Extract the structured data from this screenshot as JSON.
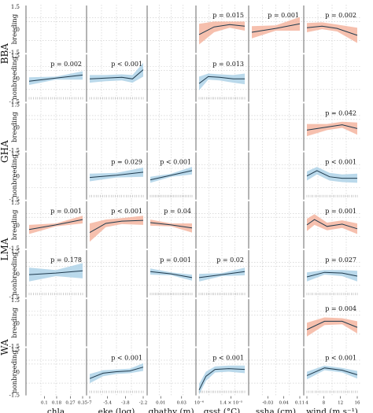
{
  "chart_data": {
    "type": "line",
    "layout_note_free": true,
    "axes": {
      "y_range": [
        -1.5,
        1.5
      ],
      "y_ticks": [
        "1.5",
        "0",
        "-1.5"
      ],
      "grid": "dotted"
    },
    "colors": {
      "breeding": "#f4b09a",
      "nonbreeding": "#a9cfe6",
      "line": "#1f3a4d",
      "grid": "#c8c8c8",
      "rug": "#9a9a9a"
    },
    "columns": [
      {
        "id": "chla",
        "xlabel": "chla",
        "xlim": [
          0,
          0.35
        ],
        "ticks": [
          {
            "v": 0.1,
            "t": "0.1"
          },
          {
            "v": 0.18,
            "t": "0.18"
          },
          {
            "v": 0.27,
            "t": "0.27"
          },
          {
            "v": 0.35,
            "t": "0.35"
          }
        ]
      },
      {
        "id": "eke",
        "xlabel": "eke (log)",
        "xlim": [
          -7,
          -2.2
        ],
        "ticks": [
          {
            "v": -7,
            "t": "-7"
          },
          {
            "v": -5.4,
            "t": "-5.4"
          },
          {
            "v": -3.8,
            "t": "-3.8"
          },
          {
            "v": -2.2,
            "t": "-2.2"
          }
        ]
      },
      {
        "id": "gbathy",
        "xlabel": "gbathy (m)",
        "xlim": [
          0,
          0.04
        ],
        "ticks": [
          {
            "v": 0.01,
            "t": "0.01"
          },
          {
            "v": 0.03,
            "t": "0.03"
          }
        ]
      },
      {
        "id": "gsst",
        "xlabel": "gsst (°C)",
        "xlim": [
          0,
          2
        ],
        "ticks": [
          {
            "v": 0,
            "t": "10⁻⁶"
          },
          {
            "v": 1.4,
            "t": "1.4 × 10⁻⁵"
          }
        ]
      },
      {
        "id": "ssha",
        "xlabel": "ssha (cm)",
        "xlim": [
          -0.1,
          0.11
        ],
        "ticks": [
          {
            "v": -0.03,
            "t": "-0.03"
          },
          {
            "v": 0.04,
            "t": "0.04"
          },
          {
            "v": 0.11,
            "t": "0.11"
          }
        ]
      },
      {
        "id": "wind",
        "xlabel": "wind (m s⁻¹)",
        "xlim": [
          4,
          16
        ],
        "ticks": [
          {
            "v": 4,
            "t": "4"
          },
          {
            "v": 8,
            "t": "8"
          },
          {
            "v": 12,
            "t": "12"
          },
          {
            "v": 16,
            "t": "16"
          }
        ]
      }
    ],
    "groups": [
      "BBA",
      "GHA",
      "LMA",
      "WA"
    ],
    "seasons": [
      "breeding",
      "nonbreeding"
    ],
    "panels": [
      {
        "group": "BBA",
        "season": "breeding",
        "col": 3,
        "p": "p = 0.015",
        "x": [
          0,
          0.33,
          0.67,
          1
        ],
        "y": [
          -0.35,
          0.15,
          0.3,
          0.2
        ],
        "lo": [
          -1.0,
          -0.2,
          0.1,
          -0.1
        ],
        "hi": [
          0.35,
          0.5,
          0.5,
          0.5
        ]
      },
      {
        "group": "BBA",
        "season": "breeding",
        "col": 4,
        "p": "p = 0.001",
        "x": [
          0,
          0.5,
          1
        ],
        "y": [
          -0.2,
          0.05,
          0.35
        ],
        "lo": [
          -0.6,
          -0.1,
          -0.1
        ],
        "hi": [
          0.2,
          0.25,
          0.8
        ]
      },
      {
        "group": "BBA",
        "season": "breeding",
        "col": 5,
        "p": "p = 0.002",
        "x": [
          0,
          0.3,
          0.6,
          1
        ],
        "y": [
          0.1,
          0.2,
          0.05,
          -0.4
        ],
        "lo": [
          -0.2,
          0.0,
          -0.15,
          -0.9
        ],
        "hi": [
          0.4,
          0.45,
          0.3,
          0.1
        ]
      },
      {
        "group": "BBA",
        "season": "nonbreeding",
        "col": 0,
        "p": "p = 0.002",
        "x": [
          0,
          0.5,
          1
        ],
        "y": [
          -0.2,
          0.0,
          0.2
        ],
        "lo": [
          -0.45,
          -0.1,
          -0.1
        ],
        "hi": [
          0.05,
          0.1,
          0.45
        ]
      },
      {
        "group": "BBA",
        "season": "nonbreeding",
        "col": 1,
        "p": "p < 0.001",
        "x": [
          0,
          0.3,
          0.6,
          0.8,
          1
        ],
        "y": [
          -0.05,
          0.0,
          0.05,
          -0.05,
          0.55
        ],
        "lo": [
          -0.3,
          -0.2,
          -0.15,
          -0.3,
          0.1
        ],
        "hi": [
          0.2,
          0.2,
          0.25,
          0.2,
          1.0
        ]
      },
      {
        "group": "BBA",
        "season": "nonbreeding",
        "col": 3,
        "p": "p = 0.013",
        "x": [
          0,
          0.2,
          0.45,
          0.75,
          1
        ],
        "y": [
          -0.35,
          0.1,
          0.05,
          -0.05,
          -0.05
        ],
        "lo": [
          -0.8,
          -0.1,
          -0.15,
          -0.3,
          -0.4
        ],
        "hi": [
          0.1,
          0.3,
          0.25,
          0.2,
          0.3
        ]
      },
      {
        "group": "GHA",
        "season": "breeding",
        "col": 5,
        "p": "p = 0.042",
        "x": [
          0,
          0.4,
          0.7,
          1
        ],
        "y": [
          -0.2,
          0.0,
          0.15,
          -0.1
        ],
        "lo": [
          -0.6,
          -0.2,
          -0.05,
          -0.5
        ],
        "hi": [
          0.2,
          0.2,
          0.35,
          0.3
        ]
      },
      {
        "group": "GHA",
        "season": "nonbreeding",
        "col": 1,
        "p": "p = 0.029",
        "x": [
          0,
          0.5,
          1
        ],
        "y": [
          -0.1,
          0.05,
          0.25
        ],
        "lo": [
          -0.35,
          -0.1,
          -0.05
        ],
        "hi": [
          0.15,
          0.2,
          0.55
        ]
      },
      {
        "group": "GHA",
        "season": "nonbreeding",
        "col": 2,
        "p": "p < 0.001",
        "x": [
          0,
          0.5,
          1
        ],
        "y": [
          -0.25,
          0.05,
          0.35
        ],
        "lo": [
          -0.45,
          -0.05,
          0.1
        ],
        "hi": [
          -0.05,
          0.15,
          0.6
        ]
      },
      {
        "group": "GHA",
        "season": "nonbreeding",
        "col": 5,
        "p": "p < 0.001",
        "x": [
          0,
          0.2,
          0.45,
          0.7,
          1
        ],
        "y": [
          0.0,
          0.35,
          -0.05,
          -0.15,
          -0.15
        ],
        "lo": [
          -0.3,
          0.1,
          -0.3,
          -0.4,
          -0.45
        ],
        "hi": [
          0.3,
          0.6,
          0.2,
          0.1,
          0.15
        ]
      },
      {
        "group": "LMA",
        "season": "breeding",
        "col": 0,
        "p": "p = 0.001",
        "x": [
          0,
          0.5,
          1
        ],
        "y": [
          -0.3,
          0.0,
          0.35
        ],
        "lo": [
          -0.6,
          -0.1,
          0.1
        ],
        "hi": [
          0.0,
          0.1,
          0.6
        ]
      },
      {
        "group": "LMA",
        "season": "breeding",
        "col": 1,
        "p": "p < 0.001",
        "x": [
          0,
          0.3,
          0.6,
          1
        ],
        "y": [
          -0.5,
          0.1,
          0.25,
          0.3
        ],
        "lo": [
          -1.1,
          -0.15,
          0.05,
          0.0
        ],
        "hi": [
          0.1,
          0.35,
          0.45,
          0.6
        ]
      },
      {
        "group": "LMA",
        "season": "breeding",
        "col": 2,
        "p": "p = 0.04",
        "x": [
          0,
          0.5,
          1
        ],
        "y": [
          0.15,
          0.0,
          -0.2
        ],
        "lo": [
          -0.05,
          -0.1,
          -0.5
        ],
        "hi": [
          0.35,
          0.1,
          0.1
        ]
      },
      {
        "group": "LMA",
        "season": "breeding",
        "col": 5,
        "p": "p = 0.001",
        "x": [
          0,
          0.15,
          0.4,
          0.7,
          1
        ],
        "y": [
          0.0,
          0.35,
          -0.1,
          0.05,
          -0.25
        ],
        "lo": [
          -0.4,
          0.0,
          -0.35,
          -0.2,
          -0.6
        ],
        "hi": [
          0.4,
          0.7,
          0.15,
          0.3,
          0.1
        ]
      },
      {
        "group": "LMA",
        "season": "nonbreeding",
        "col": 0,
        "p": "p = 0.178",
        "x": [
          0,
          0.5,
          1
        ],
        "y": [
          -0.05,
          0.05,
          0.2
        ],
        "lo": [
          -0.5,
          -0.15,
          -0.3
        ],
        "hi": [
          0.4,
          0.25,
          0.7
        ]
      },
      {
        "group": "LMA",
        "season": "nonbreeding",
        "col": 2,
        "p": "p = 0.001",
        "x": [
          0,
          0.5,
          1
        ],
        "y": [
          0.15,
          0.0,
          -0.25
        ],
        "lo": [
          -0.05,
          -0.1,
          -0.45
        ],
        "hi": [
          0.35,
          0.1,
          -0.05
        ]
      },
      {
        "group": "LMA",
        "season": "nonbreeding",
        "col": 3,
        "p": "p = 0.02",
        "x": [
          0,
          0.5,
          1
        ],
        "y": [
          -0.25,
          -0.05,
          0.15
        ],
        "lo": [
          -0.5,
          -0.15,
          -0.1
        ],
        "hi": [
          0.0,
          0.05,
          0.4
        ]
      },
      {
        "group": "LMA",
        "season": "nonbreeding",
        "col": 5,
        "p": "p = 0.027",
        "x": [
          0,
          0.35,
          0.7,
          1
        ],
        "y": [
          -0.2,
          0.1,
          0.05,
          -0.15
        ],
        "lo": [
          -0.5,
          -0.05,
          -0.15,
          -0.5
        ],
        "hi": [
          0.1,
          0.25,
          0.25,
          0.2
        ]
      },
      {
        "group": "WA",
        "season": "breeding",
        "col": 5,
        "p": "p = 0.004",
        "x": [
          0,
          0.35,
          0.7,
          1
        ],
        "y": [
          -0.45,
          0.1,
          0.1,
          -0.3
        ],
        "lo": [
          -0.9,
          -0.15,
          -0.1,
          -0.7
        ],
        "hi": [
          0.0,
          0.35,
          0.3,
          0.1
        ]
      },
      {
        "group": "WA",
        "season": "nonbreeding",
        "col": 1,
        "p": "p < 0.001",
        "x": [
          0,
          0.25,
          0.5,
          0.75,
          1
        ],
        "y": [
          -0.45,
          -0.1,
          0.0,
          0.05,
          0.3
        ],
        "lo": [
          -0.75,
          -0.3,
          -0.15,
          -0.1,
          0.05
        ],
        "hi": [
          -0.15,
          0.1,
          0.15,
          0.2,
          0.55
        ]
      },
      {
        "group": "WA",
        "season": "nonbreeding",
        "col": 3,
        "p": "p < 0.001",
        "x": [
          0,
          0.15,
          0.35,
          0.65,
          1
        ],
        "y": [
          -1.2,
          -0.3,
          0.15,
          0.2,
          0.15
        ],
        "lo": [
          -1.5,
          -0.6,
          -0.05,
          0.0,
          -0.1
        ],
        "hi": [
          -0.8,
          0.0,
          0.35,
          0.4,
          0.4
        ]
      },
      {
        "group": "WA",
        "season": "nonbreeding",
        "col": 5,
        "p": "p < 0.001",
        "x": [
          0,
          0.35,
          0.7,
          1
        ],
        "y": [
          -0.25,
          0.25,
          0.1,
          -0.2
        ],
        "lo": [
          -0.5,
          0.1,
          -0.05,
          -0.45
        ],
        "hi": [
          0.0,
          0.4,
          0.25,
          0.05
        ]
      }
    ]
  }
}
